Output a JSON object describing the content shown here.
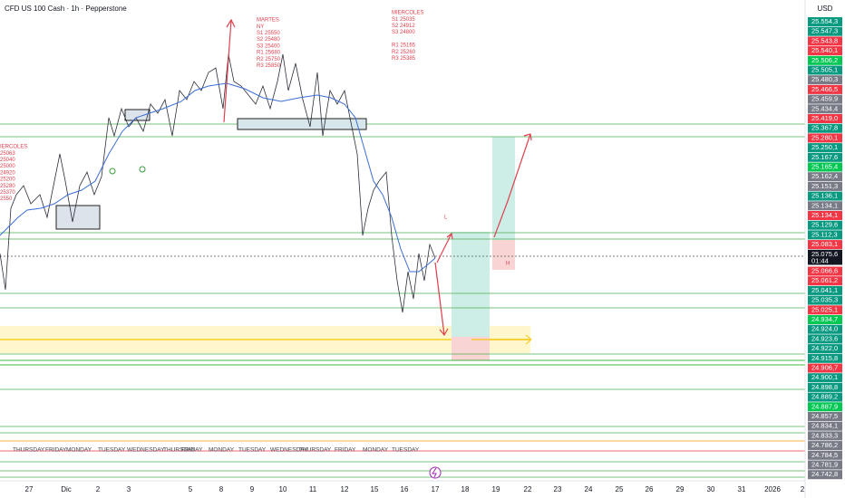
{
  "header": {
    "title": "CFD US 100 Cash · 1h · Pepperstone",
    "currency": "USD"
  },
  "price_labels": [
    {
      "text": "25.554,3",
      "color": "#089981"
    },
    {
      "text": "25.547,3",
      "color": "#089981"
    },
    {
      "text": "25.543,8",
      "color": "#f23645"
    },
    {
      "text": "25.540,1",
      "color": "#f23645"
    },
    {
      "text": "25.506,2",
      "color": "#00c853"
    },
    {
      "text": "25.505,1",
      "color": "#089981"
    },
    {
      "text": "25.480,3",
      "color": "#787b86"
    },
    {
      "text": "25.466,5",
      "color": "#f23645"
    },
    {
      "text": "25.459,9",
      "color": "#787b86"
    },
    {
      "text": "25.434,4",
      "color": "#787b86"
    },
    {
      "text": "25.419,0",
      "color": "#f23645"
    },
    {
      "text": "25.367,8",
      "color": "#089981"
    },
    {
      "text": "25.280,1",
      "color": "#f23645"
    },
    {
      "text": "25.250,1",
      "color": "#089981"
    },
    {
      "text": "25.167,6",
      "color": "#089981"
    },
    {
      "text": "25.165,4",
      "color": "#00c853"
    },
    {
      "text": "25.162,4",
      "color": "#787b86"
    },
    {
      "text": "25.151,3",
      "color": "#787b86"
    },
    {
      "text": "25.136,1",
      "color": "#089981"
    },
    {
      "text": "25.134,1",
      "color": "#787b86"
    },
    {
      "text": "25.134,1",
      "color": "#f23645"
    },
    {
      "text": "25.129,6",
      "color": "#089981"
    },
    {
      "text": "25.112,3",
      "color": "#089981"
    },
    {
      "text": "25.083,1",
      "color": "#f23645"
    },
    {
      "text": "25.075,6",
      "color": "#131722"
    },
    {
      "text": "01:44",
      "color": "#131722"
    },
    {
      "text": "25.066,6",
      "color": "#f23645"
    },
    {
      "text": "25.061,2",
      "color": "#f23645"
    },
    {
      "text": "25.041,1",
      "color": "#089981"
    },
    {
      "text": "25.035,3",
      "color": "#089981"
    },
    {
      "text": "25.025,1",
      "color": "#f23645"
    },
    {
      "text": "24.934,7",
      "color": "#00c853"
    },
    {
      "text": "24.924,0",
      "color": "#089981"
    },
    {
      "text": "24.923,6",
      "color": "#089981"
    },
    {
      "text": "24.922,0",
      "color": "#089981"
    },
    {
      "text": "24.915,8",
      "color": "#089981"
    },
    {
      "text": "24.906,7",
      "color": "#f23645"
    },
    {
      "text": "24.900,1",
      "color": "#089981"
    },
    {
      "text": "24.898,8",
      "color": "#089981"
    },
    {
      "text": "24.889,2",
      "color": "#089981"
    },
    {
      "text": "24.887,9",
      "color": "#00c853"
    },
    {
      "text": "24.857,5",
      "color": "#787b86"
    },
    {
      "text": "24.834,1",
      "color": "#787b86"
    },
    {
      "text": "24.833,3",
      "color": "#787b86"
    },
    {
      "text": "24.786,2",
      "color": "#787b86"
    },
    {
      "text": "24.784,5",
      "color": "#787b86"
    },
    {
      "text": "24.781,9",
      "color": "#787b86"
    },
    {
      "text": "24.742,8",
      "color": "#787b86"
    }
  ],
  "dates": [
    "27",
    "Dic",
    "2",
    "3",
    "5",
    "8",
    "9",
    "10",
    "11",
    "12",
    "15",
    "16",
    "17",
    "18",
    "19",
    "22",
    "23",
    "24",
    "25",
    "26",
    "29",
    "30",
    "31",
    "2026",
    "2"
  ],
  "days": [
    "THURSDAY",
    "FRIDAY",
    "MONDAY",
    "TUESDAY",
    "WEDNESDAY",
    "THURSDAY",
    "FRIDAY",
    "MONDAY",
    "TUESDAY",
    "WEDNESDAY",
    "THURSDAY",
    "FRIDAY",
    "MONDAY",
    "TUESDAY"
  ],
  "annotations": [
    {
      "lines": [
        "MARTES",
        "NY",
        "S1  25550",
        "S2  25480",
        "S3  25400",
        "R1  25680",
        "R2  25750",
        "R3  25850"
      ]
    },
    {
      "lines": [
        "MIERCOLES",
        "S1  25035",
        "S2  24912",
        "S3  24800",
        "",
        "R1  25165",
        "R2  25260",
        "R3  25385"
      ]
    },
    {
      "lines": [
        "IERCOLES",
        "25063",
        "25040",
        "25000",
        "24920",
        "25200",
        "25280",
        "25370",
        "2550"
      ]
    }
  ],
  "markers": {
    "low": "L",
    "high": "H"
  }
}
